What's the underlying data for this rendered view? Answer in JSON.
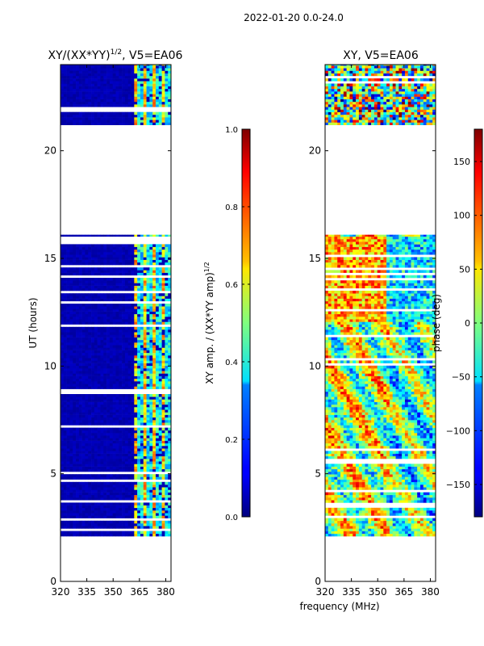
{
  "suptitle": "2022-01-20 0.0-24.0",
  "shared_xlabel": "frequency (MHz)",
  "chart_data": [
    {
      "type": "heatmap",
      "title": "XY/(XX*YY)",
      "title_superscript": "1/2",
      "title_suffix": ", V5=EA06",
      "xlabel": "",
      "ylabel": "UT (hours)",
      "xlim": [
        320,
        383
      ],
      "ylim": [
        0,
        24
      ],
      "xticks": [
        "320",
        "335",
        "350",
        "365",
        "380"
      ],
      "xtick_values": [
        320,
        335,
        350,
        365,
        380
      ],
      "yticks": [
        "0",
        "5",
        "10",
        "15",
        "20"
      ],
      "ytick_values": [
        0,
        5,
        10,
        15,
        20
      ],
      "colorbar": {
        "label": "XY amp. / (XX*YY amp)",
        "label_superscript": "1/2",
        "range": [
          0.0,
          1.0
        ],
        "ticks": [
          "0.0",
          "0.2",
          "0.4",
          "0.6",
          "0.8",
          "1.0"
        ],
        "tick_values": [
          0,
          0.2,
          0.4,
          0.6,
          0.8,
          1.0
        ],
        "colormap": "jet"
      },
      "data_hours": [
        [
          2.1,
          16.1
        ],
        [
          21.2,
          24.0
        ]
      ],
      "pattern": "low amplitude (~0.05) below 362 MHz; bright vertical channels ~0.3-0.7 between 362 and 383 MHz"
    },
    {
      "type": "heatmap",
      "title": "XY, V5=EA06",
      "xlabel": "frequency (MHz)",
      "ylabel": "",
      "xlim": [
        320,
        383
      ],
      "ylim": [
        0,
        24
      ],
      "xticks": [
        "320",
        "335",
        "350",
        "365",
        "380"
      ],
      "xtick_values": [
        320,
        335,
        350,
        365,
        380
      ],
      "yticks": [
        "0",
        "5",
        "10",
        "15",
        "20"
      ],
      "ytick_values": [
        0,
        5,
        10,
        15,
        20
      ],
      "colorbar": {
        "label": "phase (deg)",
        "range": [
          -180,
          180
        ],
        "ticks": [
          "−150",
          "−100",
          "−50",
          "0",
          "50",
          "100",
          "150"
        ],
        "tick_values": [
          -150,
          -100,
          -50,
          0,
          50,
          100,
          150
        ],
        "colormap": "jet"
      },
      "data_hours": [
        [
          2.1,
          16.1
        ],
        [
          21.2,
          24.0
        ]
      ],
      "pattern": "noisy phase, warm (50-120 deg) in 12-16 h block, mixed cool/warm bands 2-12 h"
    }
  ],
  "colors": {
    "jet_dark_blue": "#00007f",
    "jet_mid": "#7fff7f",
    "jet_dark_red": "#7f0000"
  }
}
